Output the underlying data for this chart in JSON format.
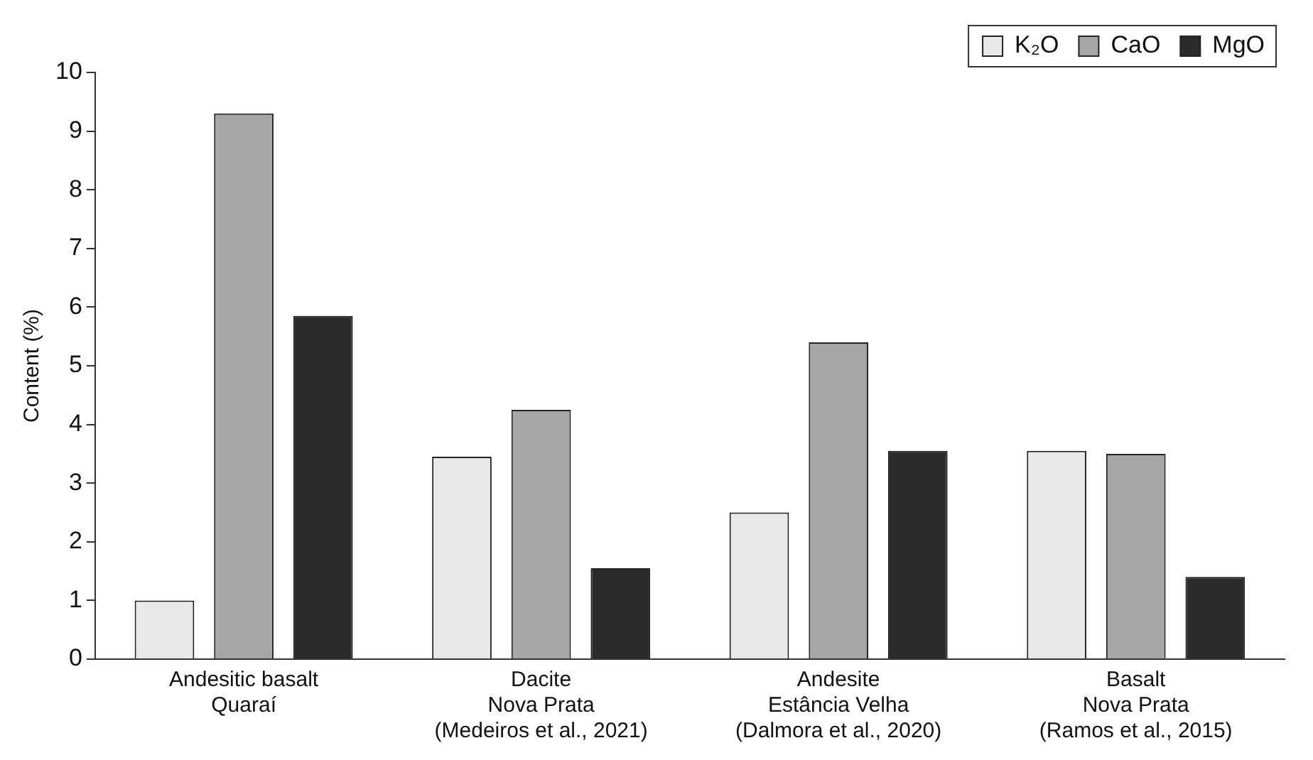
{
  "chart_data": {
    "type": "bar",
    "ylabel": "Content (%)",
    "categories": [
      "Andesitic basalt\nQuaraí",
      "Dacite\nNova Prata\n(Medeiros et al., 2021)",
      "Andesite\nEstância Velha\n(Dalmora et al., 2020)",
      "Basalt\nNova Prata\n(Ramos et al., 2015)"
    ],
    "series": [
      {
        "name": "K₂O",
        "color": "#e8e8e8",
        "values": [
          1.0,
          3.45,
          2.5,
          3.55
        ]
      },
      {
        "name": "CaO",
        "color": "#a6a6a6",
        "values": [
          9.3,
          4.25,
          5.4,
          3.5
        ]
      },
      {
        "name": "MgO",
        "color": "#2b2b2b",
        "values": [
          5.85,
          1.55,
          3.55,
          1.4
        ]
      }
    ],
    "ylim": [
      0,
      10
    ],
    "yticks": [
      0,
      1,
      2,
      3,
      4,
      5,
      6,
      7,
      8,
      9,
      10
    ],
    "grid": false,
    "legend": "top right"
  }
}
